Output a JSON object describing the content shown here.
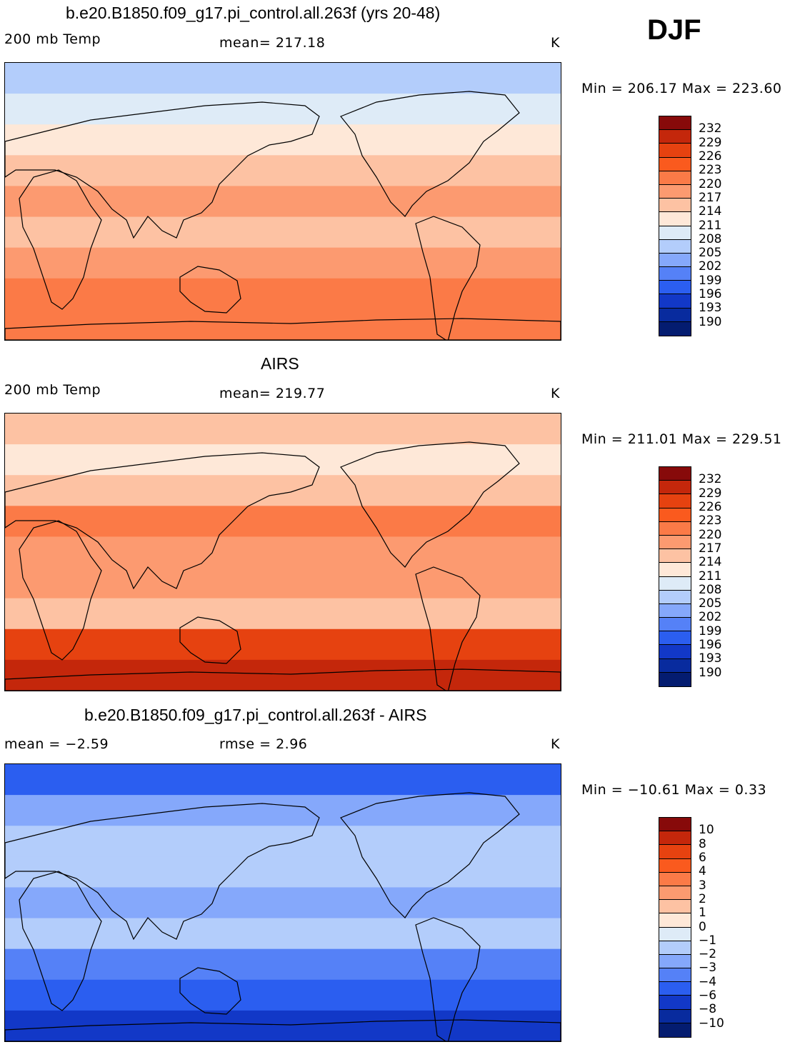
{
  "season": "DJF",
  "panels": [
    {
      "title": "b.e20.B1850.f09_g17.pi_control.all.263f (yrs 20-48)",
      "left_label": "200 mb Temp",
      "center_label": "mean= 217.18",
      "units": "K",
      "minmax": "Min = 206.17 Max = 223.60",
      "colorbar_ticks": [
        "232",
        "229",
        "226",
        "223",
        "220",
        "217",
        "214",
        "211",
        "208",
        "205",
        "202",
        "199",
        "196",
        "193",
        "190"
      ],
      "colorbar_colors": [
        "#870a0a",
        "#c4270b",
        "#e64210",
        "#fa5a1e",
        "#fb7a47",
        "#fc9a70",
        "#fdc2a3",
        "#fee8d8",
        "#deebf7",
        "#b3cdfb",
        "#85a8fb",
        "#5581f7",
        "#2b5ef0",
        "#1238c7",
        "#082b9e",
        "#041c70"
      ],
      "band_colors": [
        "#b3cdfb",
        "#deebf7",
        "#fee8d8",
        "#fdc2a3",
        "#fc9a70",
        "#fdc2a3",
        "#fc9a70",
        "#fb7a47",
        "#fb7a47"
      ]
    },
    {
      "title": "AIRS",
      "left_label": "200 mb Temp",
      "center_label": "mean= 219.77",
      "units": "K",
      "minmax": "Min = 211.01 Max = 229.51",
      "colorbar_ticks": [
        "232",
        "229",
        "226",
        "223",
        "220",
        "217",
        "214",
        "211",
        "208",
        "205",
        "202",
        "199",
        "196",
        "193",
        "190"
      ],
      "colorbar_colors": [
        "#870a0a",
        "#c4270b",
        "#e64210",
        "#fa5a1e",
        "#fb7a47",
        "#fc9a70",
        "#fdc2a3",
        "#fee8d8",
        "#deebf7",
        "#b3cdfb",
        "#85a8fb",
        "#5581f7",
        "#2b5ef0",
        "#1238c7",
        "#082b9e",
        "#041c70"
      ],
      "band_colors": [
        "#fdc2a3",
        "#fee8d8",
        "#fdc2a3",
        "#fb7a47",
        "#fc9a70",
        "#fc9a70",
        "#fdc2a3",
        "#e64210",
        "#c4270b"
      ]
    },
    {
      "title": "b.e20.B1850.f09_g17.pi_control.all.263f - AIRS",
      "left_label": "mean =   −2.59",
      "center_label": "rmse =    2.96",
      "units": "K",
      "minmax": "Min = −10.61 Max =    0.33",
      "colorbar_ticks": [
        "10",
        "8",
        "6",
        "4",
        "3",
        "2",
        "1",
        "0",
        "−1",
        "−2",
        "−3",
        "−4",
        "−6",
        "−8",
        "−10"
      ],
      "colorbar_colors": [
        "#870a0a",
        "#c4270b",
        "#e64210",
        "#fa5a1e",
        "#fb7a47",
        "#fc9a70",
        "#fdc2a3",
        "#fee8d8",
        "#deebf7",
        "#b3cdfb",
        "#85a8fb",
        "#5581f7",
        "#2b5ef0",
        "#1238c7",
        "#082b9e",
        "#041c70"
      ],
      "band_colors": [
        "#2b5ef0",
        "#85a8fb",
        "#b3cdfb",
        "#b3cdfb",
        "#85a8fb",
        "#b3cdfb",
        "#5581f7",
        "#2b5ef0",
        "#1238c7"
      ]
    }
  ]
}
